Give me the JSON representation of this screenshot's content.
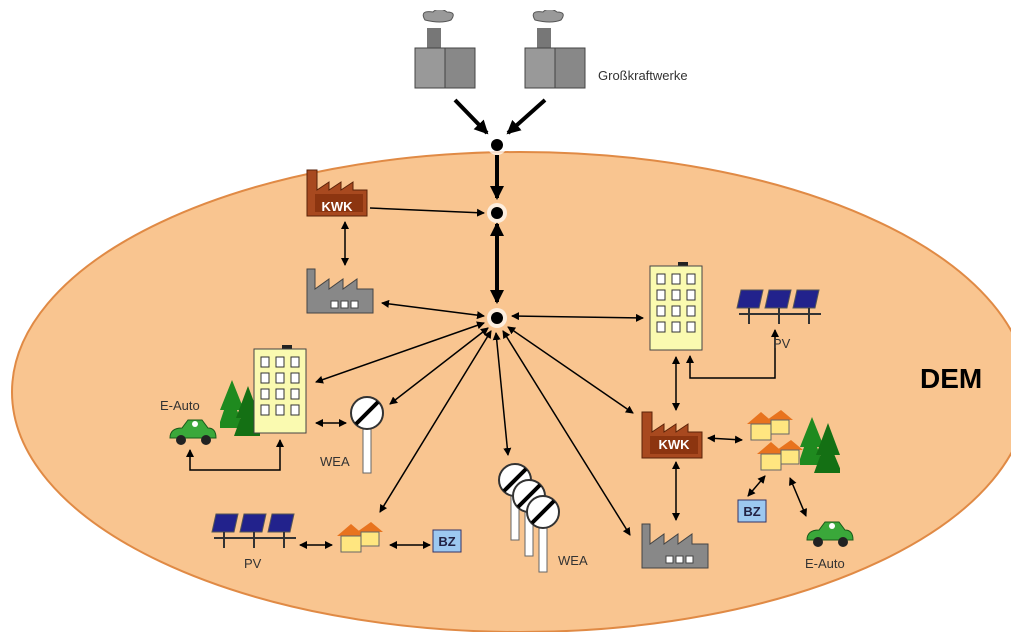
{
  "title": "Großkraftwerke",
  "region": "DEM",
  "labels": {
    "kwk_top": "KWK",
    "kwk_right": "KWK",
    "e_auto_left": "E-Auto",
    "e_auto_right": "E-Auto",
    "wea_left": "WEA",
    "wea_bottom": "WEA",
    "pv_right": "PV",
    "pv_bottom": "PV",
    "bz_bottom": "BZ",
    "bz_right": "BZ"
  }
}
